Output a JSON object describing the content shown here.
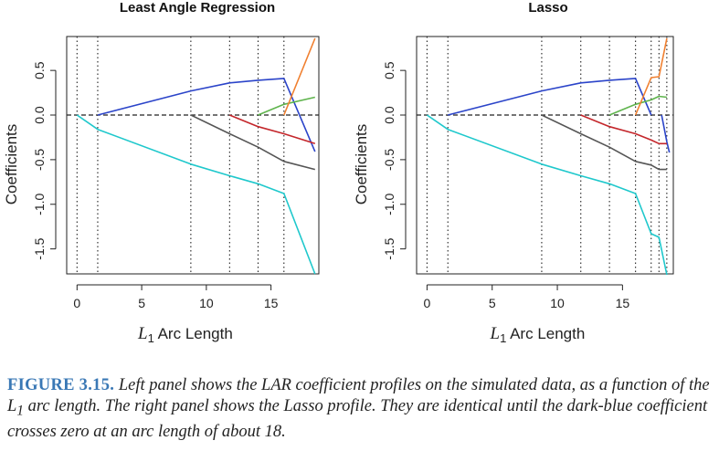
{
  "chart_data": [
    {
      "type": "line",
      "title": "Least Angle Regression",
      "xlabel": "L1 Arc Length",
      "xlabel_main": "L",
      "xlabel_sub": "1",
      "xlabel_rest": " Arc Length",
      "ylabel": "Coefficients",
      "xlim": [
        -0.8,
        18.7
      ],
      "ylim": [
        -1.78,
        0.88
      ],
      "xticks": [
        0,
        5,
        10,
        15
      ],
      "yticks": [
        -1.5,
        -1.0,
        -0.5,
        0.0,
        0.5
      ],
      "ytick_labels": [
        "-1.5",
        "-1.0",
        "-0.5",
        "0.0",
        "0.5"
      ],
      "vlines": [
        0,
        1.6,
        8.8,
        11.8,
        14.0,
        16.0
      ],
      "series": [
        {
          "color": "#1fc8cc",
          "points": [
            [
              0,
              0
            ],
            [
              1.6,
              -0.16
            ],
            [
              8.8,
              -0.55
            ],
            [
              11.8,
              -0.68
            ],
            [
              14.0,
              -0.77
            ],
            [
              16.0,
              -0.88
            ],
            [
              18.4,
              -1.78
            ]
          ]
        },
        {
          "color": "#2b44c9",
          "points": [
            [
              1.6,
              0
            ],
            [
              8.8,
              0.27
            ],
            [
              11.8,
              0.36
            ],
            [
              14.0,
              0.39
            ],
            [
              16.0,
              0.41
            ],
            [
              18.4,
              -0.41
            ]
          ]
        },
        {
          "color": "#555555",
          "points": [
            [
              8.8,
              0
            ],
            [
              11.8,
              -0.21
            ],
            [
              14.0,
              -0.36
            ],
            [
              16.0,
              -0.52
            ],
            [
              18.4,
              -0.61
            ]
          ]
        },
        {
          "color": "#c4262b",
          "points": [
            [
              11.8,
              0
            ],
            [
              14.0,
              -0.13
            ],
            [
              16.0,
              -0.21
            ],
            [
              18.4,
              -0.32
            ]
          ]
        },
        {
          "color": "#5fb44d",
          "points": [
            [
              14.0,
              0
            ],
            [
              16.0,
              0.12
            ],
            [
              18.4,
              0.2
            ]
          ]
        },
        {
          "color": "#f07f2f",
          "points": [
            [
              16.0,
              0
            ],
            [
              18.4,
              0.86
            ]
          ]
        }
      ]
    },
    {
      "type": "line",
      "title": "Lasso",
      "xlabel": "L1 Arc Length",
      "xlabel_main": "L",
      "xlabel_sub": "1",
      "xlabel_rest": " Arc Length",
      "ylabel": "Coefficients",
      "xlim": [
        -0.8,
        18.9
      ],
      "ylim": [
        -1.78,
        0.88
      ],
      "xticks": [
        0,
        5,
        10,
        15
      ],
      "yticks": [
        -1.5,
        -1.0,
        -0.5,
        0.0,
        0.5
      ],
      "ytick_labels": [
        "-1.5",
        "-1.0",
        "-0.5",
        "0.0",
        "0.5"
      ],
      "vlines": [
        0,
        1.6,
        8.8,
        11.8,
        14.0,
        16.0,
        17.2,
        17.8,
        18.4
      ],
      "series": [
        {
          "color": "#1fc8cc",
          "points": [
            [
              0,
              0
            ],
            [
              1.6,
              -0.16
            ],
            [
              8.8,
              -0.55
            ],
            [
              11.8,
              -0.68
            ],
            [
              14.0,
              -0.77
            ],
            [
              16.0,
              -0.88
            ],
            [
              17.2,
              -1.33
            ],
            [
              17.8,
              -1.37
            ],
            [
              18.4,
              -1.79
            ]
          ]
        },
        {
          "color": "#2b44c9",
          "points": [
            [
              1.6,
              0
            ],
            [
              8.8,
              0.27
            ],
            [
              11.8,
              0.36
            ],
            [
              14.0,
              0.39
            ],
            [
              16.0,
              0.41
            ],
            [
              17.2,
              0.0
            ]
          ]
        },
        {
          "color": "#2b44c9",
          "points": [
            [
              18.0,
              0
            ],
            [
              18.4,
              -0.3
            ],
            [
              18.6,
              -0.42
            ]
          ]
        },
        {
          "color": "#555555",
          "points": [
            [
              8.8,
              0
            ],
            [
              11.8,
              -0.21
            ],
            [
              14.0,
              -0.36
            ],
            [
              16.0,
              -0.52
            ],
            [
              17.2,
              -0.56
            ],
            [
              17.8,
              -0.61
            ],
            [
              18.4,
              -0.61
            ]
          ]
        },
        {
          "color": "#c4262b",
          "points": [
            [
              11.8,
              0
            ],
            [
              14.0,
              -0.13
            ],
            [
              16.0,
              -0.21
            ],
            [
              17.2,
              -0.28
            ],
            [
              17.8,
              -0.32
            ],
            [
              18.4,
              -0.32
            ]
          ]
        },
        {
          "color": "#5fb44d",
          "points": [
            [
              14.0,
              0
            ],
            [
              16.0,
              0.12
            ],
            [
              17.2,
              0.17
            ],
            [
              17.8,
              0.21
            ],
            [
              18.4,
              0.2
            ]
          ]
        },
        {
          "color": "#f07f2f",
          "points": [
            [
              16.0,
              0
            ],
            [
              17.2,
              0.42
            ],
            [
              17.8,
              0.43
            ],
            [
              18.4,
              0.86
            ]
          ]
        }
      ]
    }
  ],
  "caption": {
    "label": "FIGURE 3.15.",
    "text1": " Left panel shows the LAR coefficient profiles on the simulated data, as a function of the L",
    "sub": "1",
    "text2": " arc length. The right panel shows the Lasso profile. They are identical until the dark-blue coefficient crosses zero at an arc length of about 18."
  }
}
